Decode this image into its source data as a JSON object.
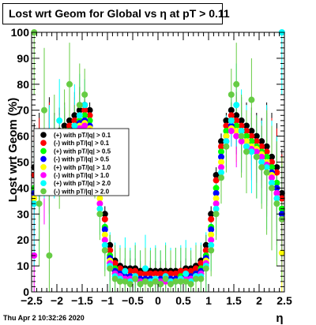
{
  "title": "Lost wrt Geom for Global vs  η at pT > 0.11",
  "footer": "Thu Apr  2 10:32:26 2020",
  "chart_data": {
    "type": "scatter",
    "title": "Lost wrt Geom for Global vs  η at pT > 0.11",
    "xlabel": "η",
    "ylabel": "Lost wrt Geom (%)",
    "xlim": [
      -2.5,
      2.5
    ],
    "ylim": [
      0,
      100
    ],
    "x_ticks": [
      "−2.5",
      "−2",
      "−1.5",
      "−1",
      "−0.5",
      "0",
      "0.5",
      "1",
      "1.5",
      "2",
      "2.5"
    ],
    "x_tick_values": [
      -2.5,
      -2,
      -1.5,
      -1,
      -0.5,
      0,
      0.5,
      1,
      1.5,
      2,
      2.5
    ],
    "y_ticks": [
      "0",
      "10",
      "20",
      "30",
      "40",
      "50",
      "60",
      "70",
      "80",
      "90",
      "100"
    ],
    "y_tick_values": [
      0,
      10,
      20,
      30,
      40,
      50,
      60,
      70,
      80,
      90,
      100
    ],
    "grid": false,
    "legend_position": "left-middle",
    "series": [
      {
        "name": "(+) with pT/|q| > 0.1",
        "color": "#000000",
        "x": [
          -2.45,
          -2.35,
          -2.25,
          -2.15,
          -2.05,
          -1.95,
          -1.85,
          -1.75,
          -1.65,
          -1.55,
          -1.45,
          -1.35,
          -1.25,
          -1.15,
          -1.05,
          -0.95,
          -0.85,
          -0.75,
          -0.65,
          -0.55,
          -0.45,
          -0.35,
          -0.25,
          -0.15,
          -0.05,
          0.05,
          0.15,
          0.25,
          0.35,
          0.45,
          0.55,
          0.65,
          0.75,
          0.85,
          0.95,
          1.05,
          1.15,
          1.25,
          1.35,
          1.45,
          1.55,
          1.65,
          1.75,
          1.85,
          1.95,
          2.05,
          2.15,
          2.25,
          2.35,
          2.45
        ],
        "y": [
          48,
          52,
          55,
          58,
          60,
          62,
          64,
          66,
          68,
          70,
          72,
          70,
          60,
          45,
          30,
          18,
          12,
          10,
          9,
          9,
          9,
          8,
          8,
          8,
          8,
          8,
          8,
          8,
          8,
          8,
          9,
          9,
          10,
          12,
          18,
          30,
          45,
          58,
          66,
          70,
          68,
          66,
          64,
          62,
          60,
          58,
          56,
          52,
          48,
          38
        ]
      },
      {
        "name": "(-) with pT/|q| > 0.1",
        "color": "#ff0000",
        "x": [
          -2.45,
          -2.35,
          -2.25,
          -2.15,
          -2.05,
          -1.95,
          -1.85,
          -1.75,
          -1.65,
          -1.55,
          -1.45,
          -1.35,
          -1.25,
          -1.15,
          -1.05,
          -0.95,
          -0.85,
          -0.75,
          -0.65,
          -0.55,
          -0.45,
          -0.35,
          -0.25,
          -0.15,
          -0.05,
          0.05,
          0.15,
          0.25,
          0.35,
          0.45,
          0.55,
          0.65,
          0.75,
          0.85,
          0.95,
          1.05,
          1.15,
          1.25,
          1.35,
          1.45,
          1.55,
          1.65,
          1.75,
          1.85,
          1.95,
          2.05,
          2.15,
          2.25,
          2.35,
          2.45
        ],
        "y": [
          45,
          50,
          53,
          56,
          58,
          60,
          62,
          64,
          66,
          68,
          70,
          68,
          58,
          43,
          28,
          16,
          11,
          9,
          8,
          8,
          8,
          7,
          7,
          7,
          7,
          7,
          7,
          7,
          7,
          8,
          8,
          8,
          9,
          11,
          16,
          28,
          43,
          56,
          64,
          68,
          66,
          64,
          62,
          60,
          58,
          56,
          54,
          50,
          46,
          36
        ]
      },
      {
        "name": "(+) with pT/|q| > 0.5",
        "color": "#00ff00",
        "x": [
          -2.45,
          -2.35,
          -2.25,
          -2.15,
          -2.05,
          -1.95,
          -1.85,
          -1.75,
          -1.65,
          -1.55,
          -1.45,
          -1.35,
          -1.25,
          -1.15,
          -1.05,
          -0.95,
          -0.85,
          -0.75,
          -0.65,
          -0.55,
          -0.45,
          -0.35,
          -0.25,
          -0.15,
          -0.05,
          0.05,
          0.15,
          0.25,
          0.35,
          0.45,
          0.55,
          0.65,
          0.75,
          0.85,
          0.95,
          1.05,
          1.15,
          1.25,
          1.35,
          1.45,
          1.55,
          1.65,
          1.75,
          1.85,
          1.95,
          2.05,
          2.15,
          2.25,
          2.35,
          2.45
        ],
        "y": [
          40,
          46,
          50,
          54,
          56,
          58,
          60,
          62,
          64,
          66,
          68,
          66,
          56,
          40,
          25,
          14,
          9,
          7,
          6,
          6,
          6,
          5,
          5,
          5,
          5,
          5,
          5,
          5,
          5,
          6,
          6,
          6,
          7,
          9,
          14,
          25,
          40,
          54,
          62,
          66,
          64,
          62,
          60,
          58,
          56,
          54,
          52,
          48,
          42,
          32
        ]
      },
      {
        "name": "(-) with pT/|q| > 0.5",
        "color": "#0000ff",
        "x": [
          -2.45,
          -2.35,
          -2.25,
          -2.15,
          -2.05,
          -1.95,
          -1.85,
          -1.75,
          -1.65,
          -1.55,
          -1.45,
          -1.35,
          -1.25,
          -1.15,
          -1.05,
          -0.95,
          -0.85,
          -0.75,
          -0.65,
          -0.55,
          -0.45,
          -0.35,
          -0.25,
          -0.15,
          -0.05,
          0.05,
          0.15,
          0.25,
          0.35,
          0.45,
          0.55,
          0.65,
          0.75,
          0.85,
          0.95,
          1.05,
          1.15,
          1.25,
          1.35,
          1.45,
          1.55,
          1.65,
          1.75,
          1.85,
          1.95,
          2.05,
          2.15,
          2.25,
          2.35,
          2.45
        ],
        "y": [
          38,
          44,
          48,
          52,
          55,
          57,
          59,
          61,
          63,
          65,
          66,
          64,
          54,
          38,
          24,
          13,
          8,
          7,
          6,
          6,
          5,
          5,
          5,
          5,
          5,
          5,
          5,
          5,
          5,
          5,
          6,
          6,
          7,
          8,
          13,
          24,
          38,
          52,
          60,
          64,
          62,
          60,
          58,
          56,
          54,
          52,
          50,
          46,
          40,
          30
        ]
      },
      {
        "name": "(+) with pT/|q| > 1.0",
        "color": "#ffff00",
        "x": [
          -2.45,
          -2.35,
          -2.25,
          -2.15,
          -2.05,
          -1.95,
          -1.85,
          -1.75,
          -1.65,
          -1.55,
          -1.45,
          -1.35,
          -1.25,
          -1.15,
          -1.05,
          -0.95,
          -0.85,
          -0.75,
          -0.65,
          -0.55,
          -0.45,
          -0.35,
          -0.25,
          -0.15,
          -0.05,
          0.05,
          0.15,
          0.25,
          0.35,
          0.45,
          0.55,
          0.65,
          0.75,
          0.85,
          0.95,
          1.05,
          1.15,
          1.25,
          1.35,
          1.45,
          1.55,
          1.65,
          1.75,
          1.85,
          1.95,
          2.05,
          2.15,
          2.25,
          2.35,
          2.45
        ],
        "y": [
          36,
          42,
          47,
          51,
          54,
          56,
          58,
          60,
          62,
          64,
          65,
          63,
          52,
          36,
          22,
          12,
          7,
          6,
          5,
          5,
          5,
          4,
          4,
          4,
          4,
          4,
          4,
          4,
          4,
          5,
          5,
          5,
          6,
          7,
          12,
          22,
          36,
          50,
          60,
          63,
          62,
          60,
          58,
          56,
          55,
          53,
          50,
          45,
          38,
          15
        ]
      },
      {
        "name": "(-) with pT/|q| > 1.0",
        "color": "#ff00ff",
        "x": [
          -2.45,
          -2.35,
          -2.25,
          -2.15,
          -2.05,
          -1.95,
          -1.85,
          -1.75,
          -1.65,
          -1.55,
          -1.45,
          -1.35,
          -1.25,
          -1.15,
          -1.05,
          -0.95,
          -0.85,
          -0.75,
          -0.65,
          -0.55,
          -0.45,
          -0.35,
          -0.25,
          -0.15,
          -0.05,
          0.05,
          0.15,
          0.25,
          0.35,
          0.45,
          0.55,
          0.65,
          0.75,
          0.85,
          0.95,
          1.05,
          1.15,
          1.25,
          1.35,
          1.45,
          1.55,
          1.65,
          1.75,
          1.85,
          1.95,
          2.05,
          2.15,
          2.25,
          2.35,
          2.45
        ],
        "y": [
          14,
          40,
          46,
          50,
          53,
          55,
          57,
          59,
          61,
          63,
          64,
          62,
          50,
          34,
          20,
          11,
          7,
          6,
          5,
          5,
          5,
          4,
          4,
          4,
          4,
          4,
          4,
          4,
          4,
          5,
          5,
          5,
          6,
          7,
          11,
          20,
          34,
          48,
          58,
          62,
          60,
          58,
          56,
          55,
          54,
          52,
          49,
          44,
          38,
          28
        ]
      },
      {
        "name": "(+) with pT/|q| > 2.0",
        "color": "#00ffff",
        "x": [
          -2.45,
          -2.35,
          -2.25,
          -2.15,
          -2.05,
          -1.95,
          -1.85,
          -1.75,
          -1.65,
          -1.55,
          -1.45,
          -1.35,
          -1.25,
          -1.15,
          -1.05,
          -0.95,
          -0.85,
          -0.75,
          -0.65,
          -0.55,
          -0.45,
          -0.35,
          -0.25,
          -0.15,
          -0.05,
          0.05,
          0.15,
          0.25,
          0.35,
          0.45,
          0.55,
          0.65,
          0.75,
          0.85,
          0.95,
          1.05,
          1.15,
          1.25,
          1.35,
          1.45,
          1.55,
          1.65,
          1.75,
          1.85,
          1.95,
          2.05,
          2.15,
          2.25,
          2.35,
          2.45
        ],
        "y": [
          34,
          38,
          60,
          48,
          52,
          66,
          56,
          58,
          64,
          68,
          72,
          60,
          48,
          32,
          18,
          10,
          6,
          5,
          8,
          4,
          6,
          3,
          9,
          4,
          5,
          3,
          6,
          4,
          4,
          5,
          7,
          4,
          6,
          6,
          10,
          18,
          32,
          46,
          58,
          66,
          72,
          62,
          56,
          54,
          52,
          50,
          48,
          42,
          36,
          100
        ]
      },
      {
        "name": "(-) with pT/|q| > 2.0",
        "color": "#66cc44",
        "x": [
          -2.45,
          -2.35,
          -2.25,
          -2.15,
          -2.05,
          -1.95,
          -1.85,
          -1.75,
          -1.65,
          -1.55,
          -1.45,
          -1.35,
          -1.25,
          -1.15,
          -1.05,
          -0.95,
          -0.85,
          -0.75,
          -0.65,
          -0.55,
          -0.45,
          -0.35,
          -0.25,
          -0.15,
          -0.05,
          0.05,
          0.15,
          0.25,
          0.35,
          0.45,
          0.55,
          0.65,
          0.75,
          0.85,
          0.95,
          1.05,
          1.15,
          1.25,
          1.35,
          1.45,
          1.55,
          1.65,
          1.75,
          1.85,
          1.95,
          2.05,
          2.15,
          2.25,
          2.35,
          2.45
        ],
        "y": [
          100,
          34,
          70,
          14,
          60,
          48,
          62,
          80,
          56,
          72,
          76,
          58,
          46,
          30,
          16,
          9,
          5,
          4,
          4,
          3,
          5,
          3,
          4,
          3,
          4,
          3,
          5,
          3,
          4,
          4,
          4,
          3,
          5,
          5,
          9,
          16,
          30,
          44,
          56,
          76,
          80,
          60,
          54,
          74,
          52,
          48,
          46,
          40,
          34,
          28
        ]
      }
    ]
  }
}
